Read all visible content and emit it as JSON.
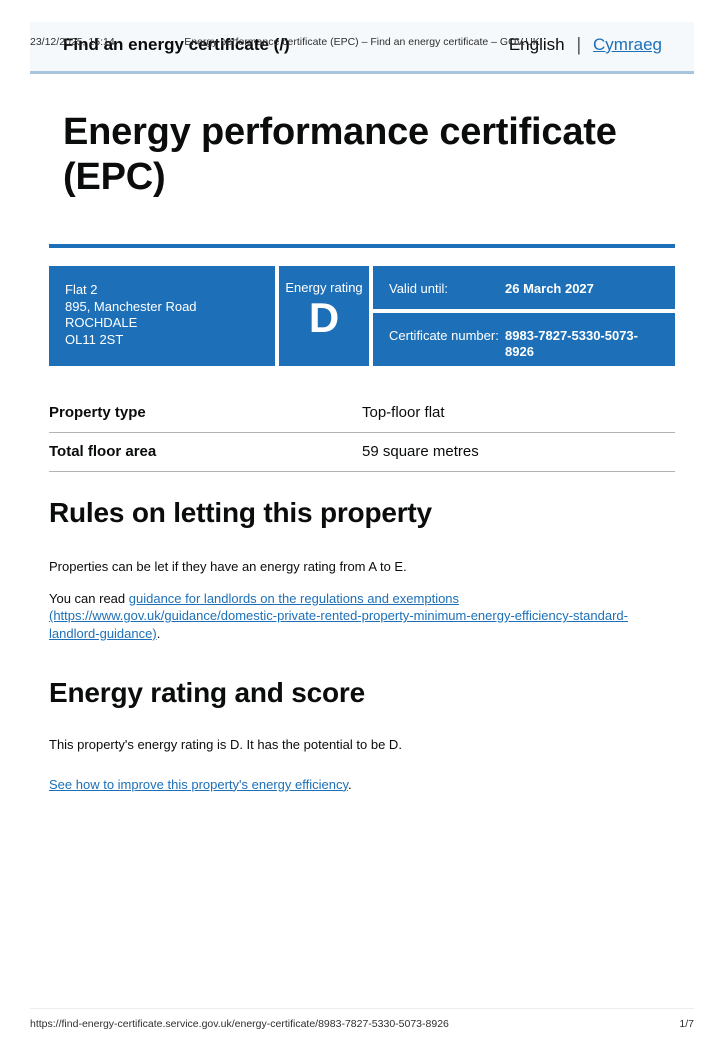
{
  "meta": {
    "datetime": "23/12/2025, 15:14",
    "doc_title": "Energy performance certificate (EPC) – Find an energy certificate – GOV.UK",
    "footer_url": "https://find-energy-certificate.service.gov.uk/energy-certificate/8983-7827-5330-5073-8926",
    "page_indicator": "1/7"
  },
  "header": {
    "service_name": "Find an energy certificate (/)",
    "language_current": "English",
    "language_separator": "|",
    "language_link": "Cymraeg"
  },
  "page_title": "Energy performance certificate (EPC)",
  "summary_box": {
    "address_lines": [
      "Flat 2",
      "895, Manchester Road",
      "ROCHDALE",
      "OL11 2ST"
    ],
    "energy_rating_label": "Energy rating",
    "energy_rating_value": "D",
    "valid_until_label": "Valid until:",
    "valid_until_value": "26 March 2027",
    "certificate_number_label": "Certificate number:",
    "certificate_number_value": "8983-7827-5330-5073-8926"
  },
  "property_table": {
    "rows": [
      {
        "label": "Property type",
        "value": "Top-floor flat"
      },
      {
        "label": "Total floor area",
        "value": "59 square metres"
      }
    ]
  },
  "rules_section": {
    "heading": "Rules on letting this property",
    "paragraph1": "Properties can be let if they have an energy rating from A to E.",
    "paragraph2_prefix": "You can read ",
    "paragraph2_link": "guidance for landlords on the regulations and exemptions (https://www.gov.uk/guidance/domestic-private-rented-property-minimum-energy-efficiency-standard-landlord-guidance)",
    "paragraph2_suffix": "."
  },
  "rating_section": {
    "heading": "Energy rating and score",
    "paragraph1": "This property's energy rating is D. It has the potential to be D.",
    "improve_link": "See how to improve this property's energy efficiency",
    "improve_suffix": "."
  },
  "colors": {
    "govuk_blue": "#1d70b8",
    "link_blue": "#1d70b8",
    "table_border_grey": "#b1b4b6",
    "header_background": "#f6f9fb",
    "header_border_blue": "#a9c4dd"
  }
}
